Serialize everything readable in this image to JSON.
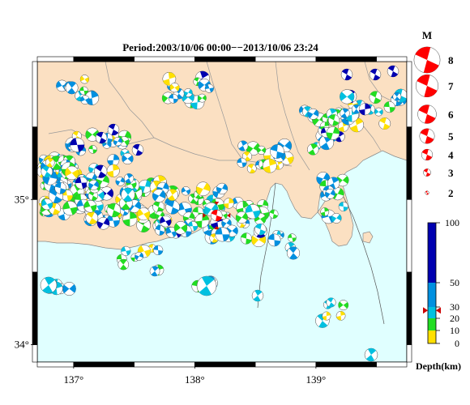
{
  "title": "Period:2003/10/06 00:00−−2013/10/06 23:24",
  "map": {
    "lon_range": [
      136.7,
      139.75
    ],
    "lat_range": [
      33.88,
      35.95
    ],
    "lon_ticks": [
      {
        "value": 137,
        "label": "137°"
      },
      {
        "value": 138,
        "label": "138°"
      },
      {
        "value": 139,
        "label": "139°"
      }
    ],
    "lat_ticks": [
      {
        "value": 34,
        "label": "34°"
      },
      {
        "value": 35,
        "label": "35°"
      }
    ],
    "colors": {
      "land": "#fbe0c2",
      "sea": "#e0ffff",
      "border": "#999999"
    },
    "target_event": {
      "lon": 138.18,
      "lat": 34.89,
      "color": "#ff0000"
    }
  },
  "magnitude_legend": {
    "label": "M",
    "items": [
      {
        "label": "8",
        "mag": 8
      },
      {
        "label": "7",
        "mag": 7
      },
      {
        "label": "6",
        "mag": 6
      },
      {
        "label": "5",
        "mag": 5
      },
      {
        "label": "4",
        "mag": 4
      },
      {
        "label": "3",
        "mag": 3
      },
      {
        "label": "2",
        "mag": 2
      }
    ],
    "color": "#ff0000"
  },
  "depth_colorbar": {
    "label": "Depth(km)",
    "ticks": [
      {
        "value": 0,
        "label": "0"
      },
      {
        "value": 10,
        "label": "10"
      },
      {
        "value": 20,
        "label": "20"
      },
      {
        "value": 30,
        "label": "30"
      },
      {
        "value": 50,
        "label": "50"
      },
      {
        "value": 100,
        "label": "100"
      }
    ],
    "bands": [
      {
        "from": 0,
        "to": 10,
        "color": "#ffe000"
      },
      {
        "from": 10,
        "to": 20,
        "color": "#22dd22"
      },
      {
        "from": 20,
        "to": 30,
        "color": "#00c0e0"
      },
      {
        "from": 30,
        "to": 50,
        "color": "#0090e0"
      },
      {
        "from": 50,
        "to": 100,
        "color": "#0000b0"
      }
    ],
    "marker_depth": 27
  }
}
